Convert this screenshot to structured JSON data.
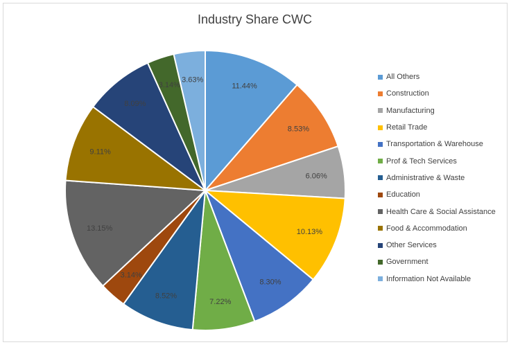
{
  "chart_data": {
    "type": "pie",
    "title": "Industry Share CWC",
    "categories": [
      "All Others",
      "Construction",
      "Manufacturing",
      "Retail Trade",
      "Transportation & Warehouse",
      "Prof & Tech Services",
      "Administrative & Waste",
      "Education",
      "Health Care & Social Assistance",
      "Food & Accommodation",
      "Other Services",
      "Government",
      "Information Not Available"
    ],
    "values": [
      11.44,
      8.53,
      6.06,
      10.13,
      8.3,
      7.22,
      8.52,
      3.14,
      13.15,
      9.11,
      8.09,
      3.14,
      3.63
    ],
    "data_labels": [
      "11.44%",
      "8.53%",
      "6.06%",
      "10.13%",
      "8.30%",
      "7.22%",
      "8.52%",
      "3.14%",
      "13.15%",
      "9.11%",
      "8.09%",
      "3.14%",
      "3.63%"
    ],
    "colors": [
      "#5B9BD5",
      "#ED7D31",
      "#A5A5A5",
      "#FFC000",
      "#4472C4",
      "#70AD47",
      "#255E91",
      "#9E480E",
      "#636363",
      "#997300",
      "#264478",
      "#43682B",
      "#7CAFDD"
    ],
    "legend_position": "right"
  }
}
